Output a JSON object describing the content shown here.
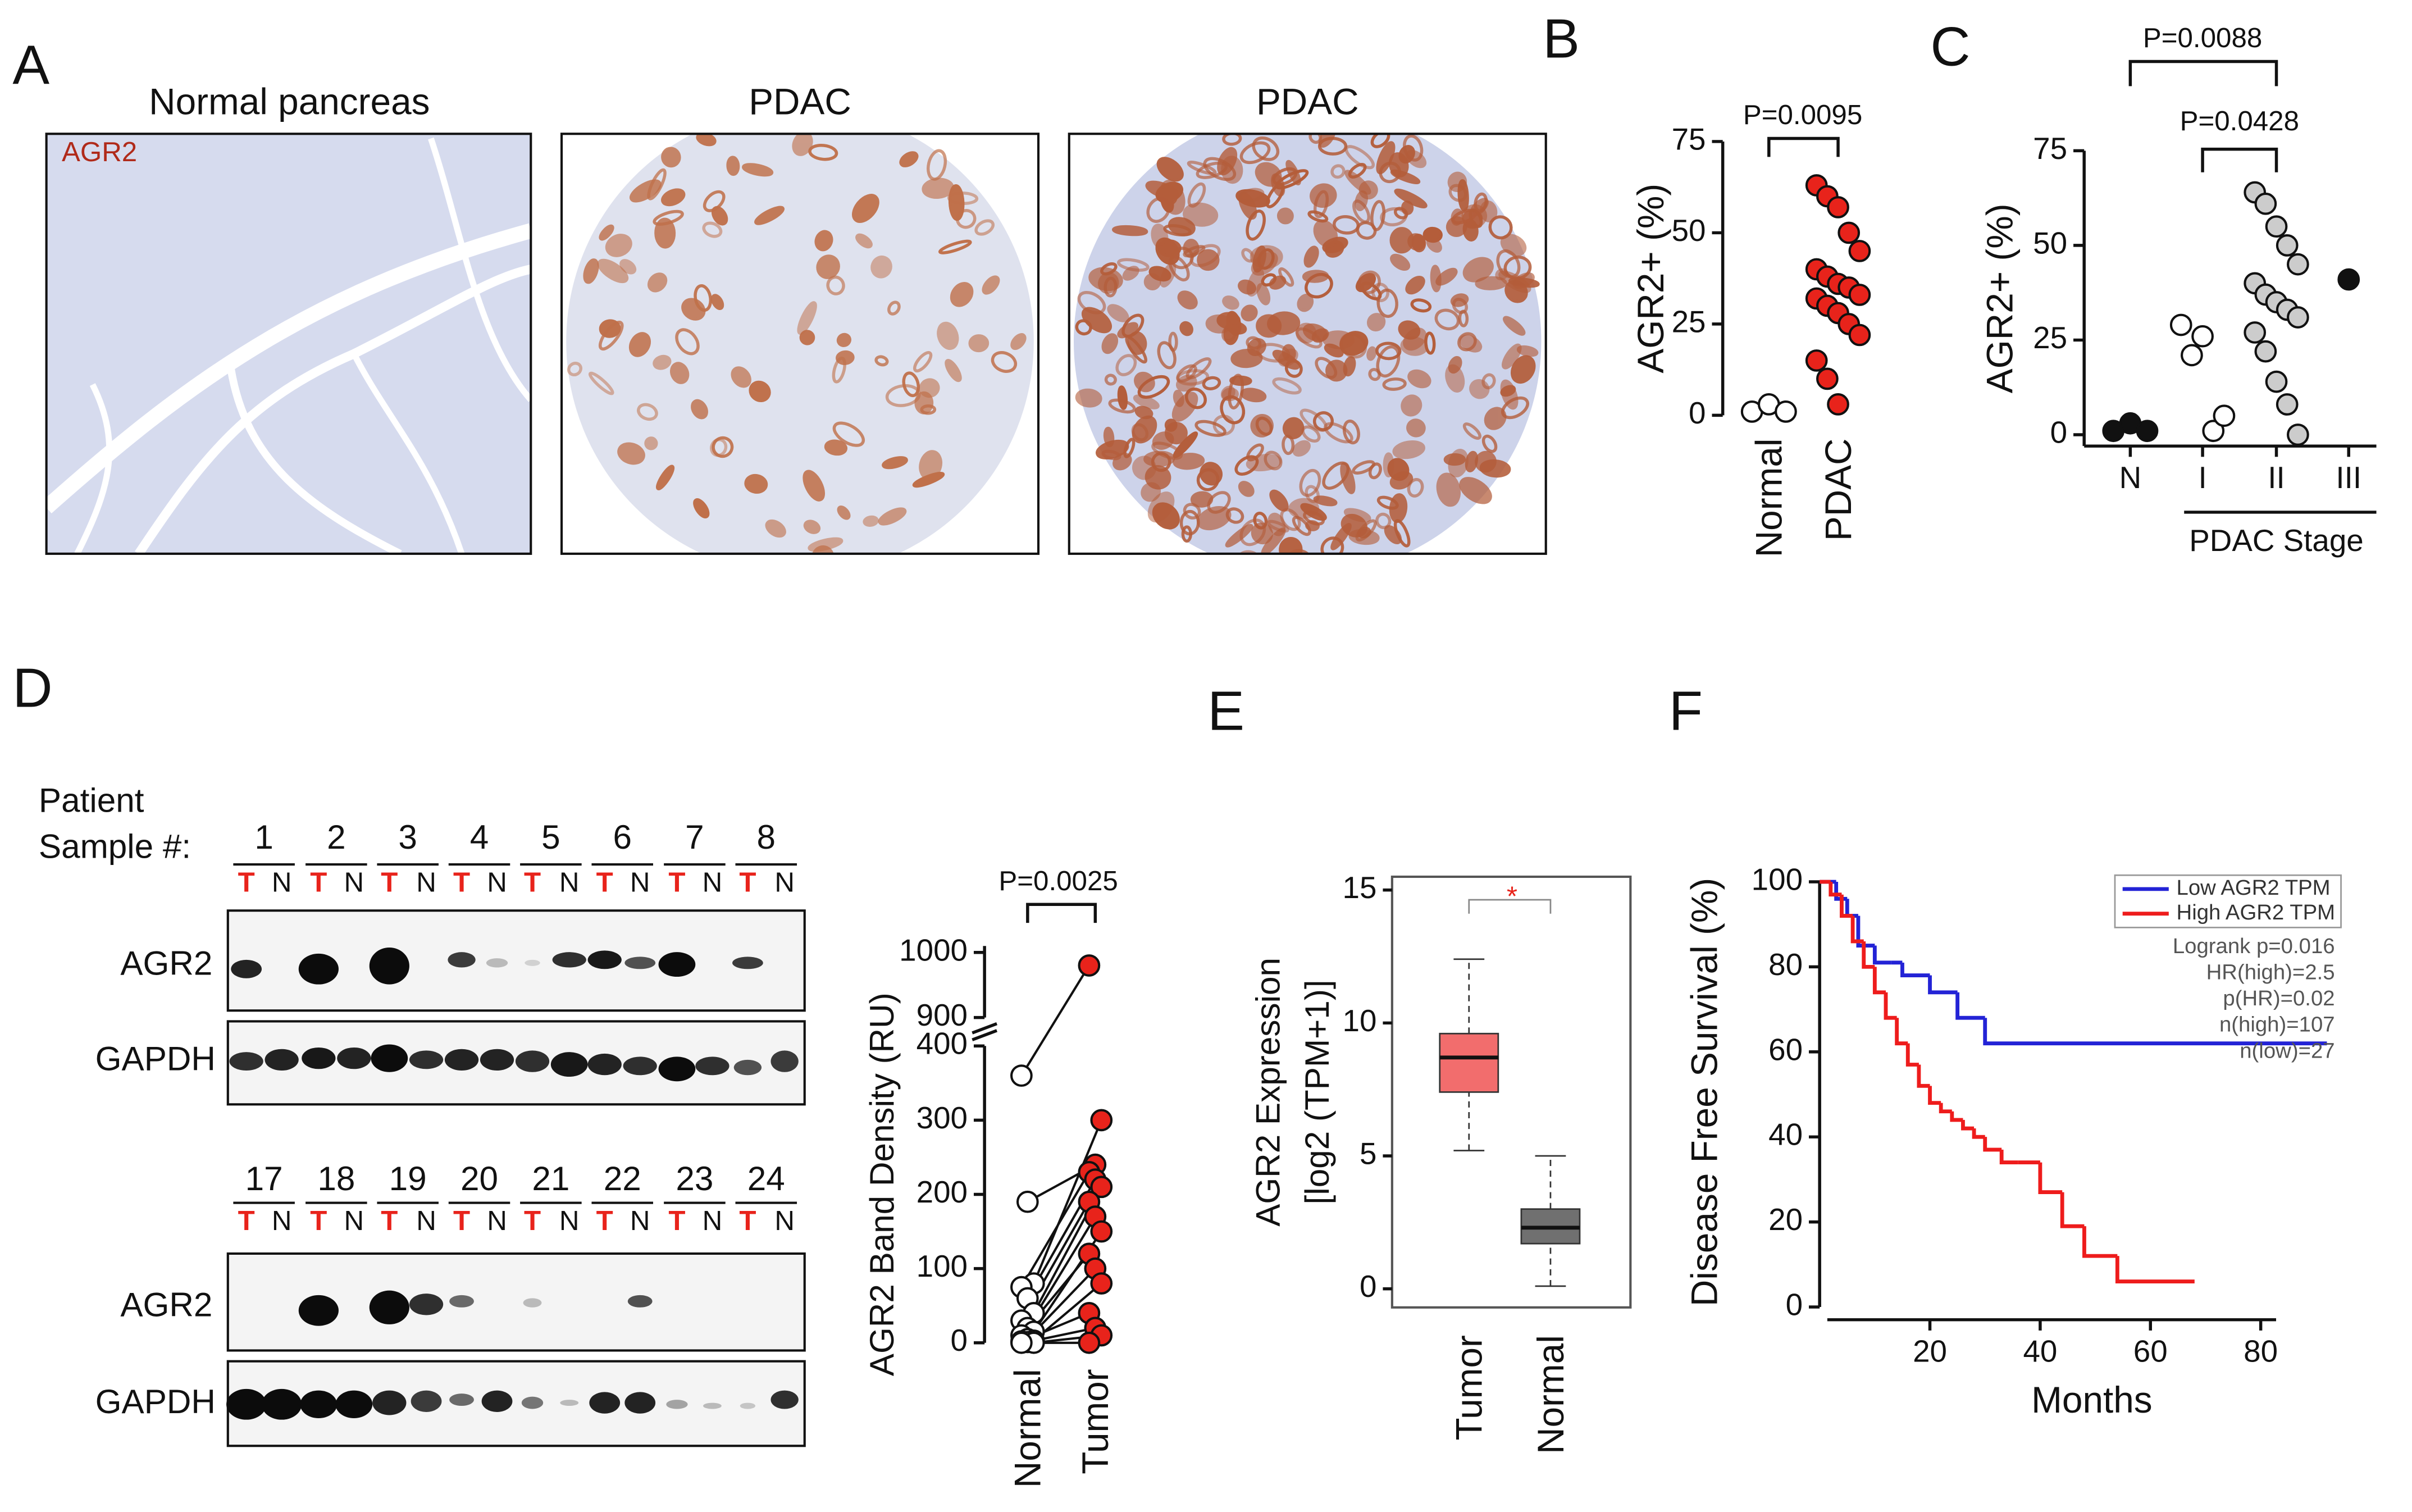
{
  "figure": {
    "panel_labels": [
      "A",
      "B",
      "C",
      "D",
      "E",
      "F"
    ]
  },
  "panel_a": {
    "titles": [
      "Normal pancreas",
      "PDAC",
      "PDAC"
    ],
    "stain_label": "AGR2"
  },
  "panel_d_blot": {
    "row_label": [
      "Patient",
      "Sample #:"
    ],
    "samples_top": [
      1,
      2,
      3,
      4,
      5,
      6,
      7,
      8
    ],
    "samples_bottom": [
      17,
      18,
      19,
      20,
      21,
      22,
      23,
      24
    ],
    "lane_labels": [
      "T",
      "N"
    ],
    "proteins": [
      "AGR2",
      "GAPDH"
    ]
  },
  "chart_data": [
    {
      "type": "dot",
      "y_label": "AGR2+ (%)",
      "categories": [
        "Normal",
        "PDAC"
      ],
      "values": [
        [
          1,
          3,
          1
        ],
        [
          63,
          60,
          57,
          50,
          45,
          40,
          38,
          36,
          35,
          33,
          32,
          30,
          28,
          25,
          22,
          15,
          10,
          3
        ]
      ],
      "colors": [
        "#ffffff",
        "#e8231b"
      ],
      "ylim": [
        0,
        75
      ],
      "yticks": [
        0,
        25,
        50,
        75
      ],
      "annotations": [
        "P=0.0095"
      ]
    },
    {
      "type": "dot",
      "y_label": "AGR2+ (%)",
      "x_label": "PDAC Stage",
      "categories": [
        "N",
        "I",
        "II",
        "III"
      ],
      "values": [
        [
          1,
          3,
          1
        ],
        [
          29,
          21,
          26,
          1,
          5
        ],
        [
          64,
          61,
          55,
          50,
          45,
          40,
          37,
          35,
          33,
          31,
          27,
          22,
          14,
          8,
          0
        ],
        [
          41
        ]
      ],
      "colors": [
        "#111111",
        "#ffffff",
        "#cccccc",
        "#111111"
      ],
      "ylim": [
        -3,
        75
      ],
      "yticks": [
        0,
        25,
        50,
        75
      ],
      "annotations": [
        "P=0.0088",
        "P=0.0428"
      ]
    },
    {
      "type": "paired",
      "y_label": "AGR2 Band Density (RU)",
      "categories": [
        "Normal",
        "Tumor"
      ],
      "values": [
        [
          360,
          190,
          80,
          75,
          60,
          40,
          30,
          20,
          15,
          10,
          5,
          3,
          2,
          1,
          0,
          0
        ],
        [
          980,
          240,
          300,
          230,
          220,
          210,
          190,
          170,
          150,
          120,
          100,
          80,
          40,
          20,
          10,
          0
        ]
      ],
      "colors": [
        "#ffffff",
        "#e8231b"
      ],
      "ylim": [
        0,
        400
      ],
      "yticks": [
        0,
        100,
        200,
        300,
        400
      ],
      "ylim_upper": [
        880,
        1010
      ],
      "yticks_upper": [
        900,
        1000
      ],
      "annotations": [
        "P=0.0025"
      ]
    },
    {
      "type": "box",
      "y_label": [
        "AGR2 Expression",
        "[log2 (TPM+1)]"
      ],
      "categories": [
        "Tumor",
        "Normal"
      ],
      "boxes": [
        {
          "low": 5.2,
          "q1": 7.4,
          "median": 8.7,
          "q3": 9.6,
          "high": 12.4
        },
        {
          "low": 0.1,
          "q1": 1.7,
          "median": 2.3,
          "q3": 3.0,
          "high": 5.0
        }
      ],
      "colors": [
        "#f26d6d",
        "#707070"
      ],
      "ylim": [
        -0.7,
        15.5
      ],
      "yticks": [
        0,
        5,
        10,
        15
      ],
      "annotations": [
        "*"
      ]
    },
    {
      "type": "step",
      "x_label": "Months",
      "y_label": "Disease Free Survival (%)",
      "xlim": [
        0,
        94
      ],
      "xticks": [
        20,
        40,
        60,
        80
      ],
      "ylim": [
        -3,
        103
      ],
      "yticks": [
        0,
        20,
        40,
        60,
        80,
        100
      ],
      "legend": "top-right",
      "series": [
        {
          "name": "Low AGR2 TPM",
          "color": "#2323d6",
          "x": [
            0,
            3,
            5,
            7,
            10,
            13,
            15,
            20,
            25,
            30,
            92
          ],
          "values": [
            100,
            96,
            92,
            85,
            81,
            81,
            78,
            74,
            68,
            62,
            62
          ]
        },
        {
          "name": "High AGR2 TPM",
          "color": "#ee1c1c",
          "x": [
            0,
            2,
            4,
            6,
            8,
            10,
            12,
            14,
            16,
            18,
            20,
            22,
            24,
            26,
            28,
            30,
            33,
            36,
            40,
            44,
            48,
            54,
            68
          ],
          "values": [
            100,
            97,
            92,
            86,
            80,
            74,
            68,
            62,
            57,
            52,
            48,
            46,
            44,
            42,
            40,
            37,
            34,
            34,
            27,
            19,
            12,
            6,
            6
          ]
        }
      ],
      "annotations": [
        "Logrank p=0.016",
        "HR(high)=2.5",
        "p(HR)=0.02",
        "n(high)=107",
        "n(low)=27"
      ]
    }
  ]
}
